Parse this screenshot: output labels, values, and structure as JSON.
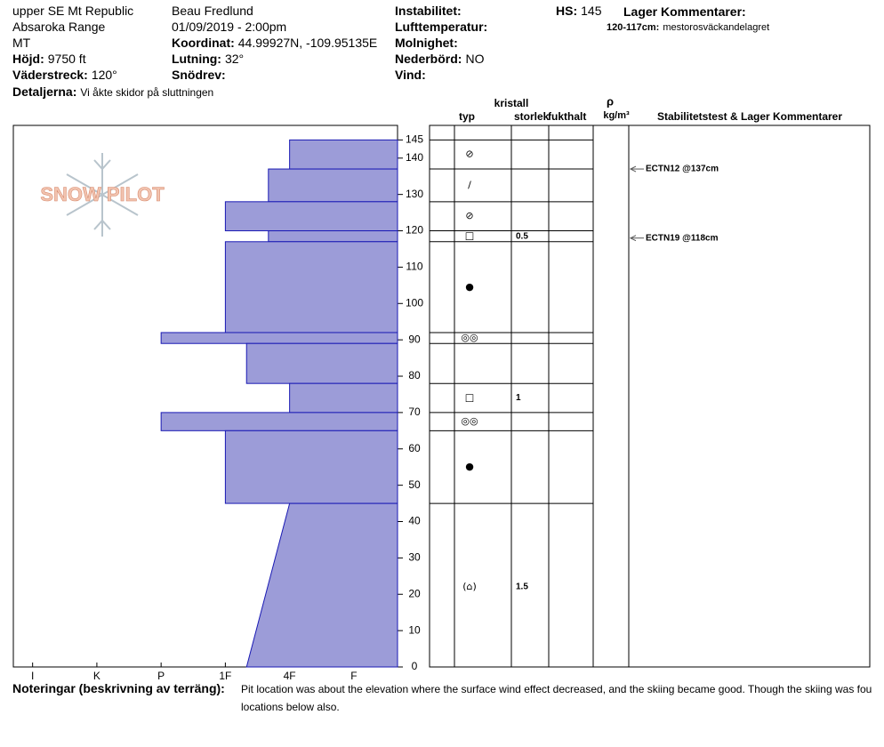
{
  "header": {
    "columns": [
      [
        {
          "value": "upper SE Mt Republic"
        },
        {
          "value": "Absaroka Range"
        },
        {
          "value": "MT"
        },
        {
          "label": "Höjd:",
          "value": "9750 ft"
        },
        {
          "label": "Väderstreck:",
          "value": "120°"
        }
      ],
      [
        {
          "value": "Beau  Fredlund"
        },
        {
          "value": "01/09/2019 - 2:00pm"
        },
        {
          "label": "Koordinat:",
          "value": "44.99927N, -109.95135E"
        },
        {
          "label": "Lutning:",
          "value": "32°"
        },
        {
          "label": "Snödrev:"
        }
      ],
      [
        {
          "label": "Instabilitet:"
        },
        {
          "label": "Lufttemperatur:"
        },
        {
          "label": "Molnighet:"
        },
        {
          "label": "Nederbörd:",
          "value": "NO"
        },
        {
          "label": "Vind:"
        }
      ],
      [
        {
          "label": "HS:",
          "value": "145"
        }
      ]
    ],
    "details": {
      "label": "Detaljerna:",
      "value": "Vi åkte skidor på sluttningen"
    },
    "layer_comments": {
      "title": "Lager Kommentarer:",
      "items": [
        {
          "label": "120-117cm:",
          "value": "mestorosväckandelagret"
        }
      ]
    },
    "logo": "SNOW PILOT"
  },
  "chart_data": {
    "type": "hardness-profile",
    "color": "#9c9cd8",
    "edge_color": "#1a1ab4",
    "xlim": [
      6.3,
      0.32
    ],
    "xticks": [
      {
        "value": 6,
        "label": "I"
      },
      {
        "value": 5,
        "label": "K"
      },
      {
        "value": 4,
        "label": "P"
      },
      {
        "value": 3,
        "label": "1F"
      },
      {
        "value": 2,
        "label": "4F"
      },
      {
        "value": 1,
        "label": "F"
      }
    ],
    "ylim": [
      0,
      149
    ],
    "yticks": [
      0,
      10,
      20,
      30,
      40,
      50,
      60,
      70,
      80,
      90,
      100,
      110,
      120,
      130,
      140,
      145
    ],
    "columns": {
      "crystal": "kristall",
      "type": "typ",
      "size": "storlek",
      "moisture": "fukthalt",
      "rho": "ρ",
      "density": "kg/m³",
      "tests": "Stabilitetstest & Lager Kommentarer"
    },
    "layers": [
      {
        "top": 145,
        "bottom": 137,
        "hardness": 2,
        "grain": "⊘"
      },
      {
        "top": 137,
        "bottom": 128,
        "hardness": 2.33,
        "grain": "/"
      },
      {
        "top": 128,
        "bottom": 120,
        "hardness": 3,
        "grain": "⊘"
      },
      {
        "top": 120,
        "bottom": 117,
        "hardness": 2.33,
        "grain": "□",
        "size": "0.5"
      },
      {
        "top": 117,
        "bottom": 92,
        "hardness": 3,
        "grain": "●"
      },
      {
        "top": 92,
        "bottom": 89,
        "hardness": 4,
        "grain": "◎◎"
      },
      {
        "top": 89,
        "bottom": 78,
        "hardness": 2.67
      },
      {
        "top": 78,
        "bottom": 70,
        "hardness": 2,
        "grain": "□",
        "size": "1"
      },
      {
        "top": 70,
        "bottom": 65,
        "hardness": 4,
        "grain": "◎◎"
      },
      {
        "top": 65,
        "bottom": 45,
        "hardness": 3,
        "grain": "●"
      },
      {
        "top": 45,
        "bottom": 0,
        "hardness": 2,
        "hardness_bottom": 2.67,
        "grain": "(⌂)",
        "size": "1.5"
      }
    ],
    "tests": [
      {
        "depth": 137,
        "label": "ECTN12 @137cm"
      },
      {
        "depth": 118,
        "label": "ECTN19 @118cm"
      }
    ]
  },
  "notes": {
    "label": "Noteringar (beskrivning av terräng):",
    "lines": [
      "Pit location was about the elevation where the surface wind effect decreased, and the skiing became good.  Though the skiing was fou",
      "locations below also."
    ]
  }
}
